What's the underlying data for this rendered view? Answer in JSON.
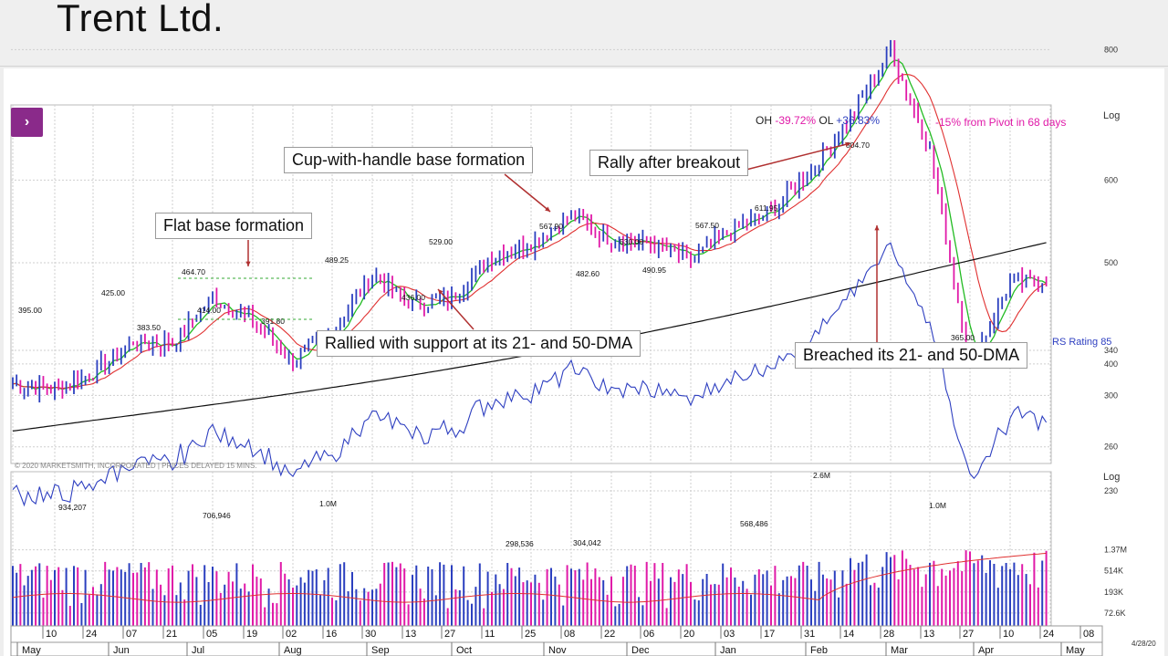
{
  "slide": {
    "title": "Trent Ltd."
  },
  "header": {
    "oh_label": "OH",
    "oh_value": "-39.72%",
    "ol_label": "OL",
    "ol_value": "+36.83%",
    "pivot_note": "-15% from Pivot in 68 days"
  },
  "nav": {
    "expand_symbol": "›"
  },
  "callouts": {
    "flat_base": "Flat base formation",
    "cup_handle": "Cup-with-handle base formation",
    "rally": "Rally after breakout",
    "support": "Rallied with support at its 21- and 50-DMA",
    "breach": "Breached its 21- and 50-DMA"
  },
  "colors": {
    "up": "#2b3fbf",
    "down": "#e01aa8",
    "dma21": "#22bb22",
    "dma50": "#e03030",
    "dma200": "#111111",
    "rs": "#2e3fc0",
    "volavg": "#e03030",
    "callout_arrow": "#b03030"
  },
  "chart_data": {
    "type": "line",
    "title": "Trent Ltd. daily price (log scale)",
    "price_axis": {
      "label": "Log",
      "ticks": [
        800,
        600,
        500,
        400,
        340,
        300,
        260,
        230
      ]
    },
    "price_points": {
      "dates": [
        "May 1",
        "May 10",
        "May 24",
        "Jun 7",
        "Jun 21",
        "Jul 5",
        "Jul 19",
        "Aug 2",
        "Aug 16",
        "Aug 30",
        "Sep 13",
        "Sep 27",
        "Oct 11",
        "Oct 25",
        "Nov 8",
        "Nov 22",
        "Dec 6",
        "Dec 20",
        "Jan 3",
        "Jan 17",
        "Jan 31",
        "Feb 14",
        "Feb 28",
        "Mar 13",
        "Mar 27",
        "Apr 10",
        "Apr 24"
      ],
      "close": [
        383,
        378,
        392,
        420,
        418,
        462,
        440,
        402,
        428,
        487,
        455,
        463,
        508,
        522,
        555,
        526,
        522,
        503,
        537,
        560,
        612,
        690,
        800,
        642,
        398,
        478,
        482
      ]
    },
    "price_labels": [
      {
        "text": "395.00",
        "value": 395
      },
      {
        "text": "425.00",
        "value": 425
      },
      {
        "text": "383.50",
        "value": 383.5
      },
      {
        "text": "464.70",
        "value": 464.7
      },
      {
        "text": "414.00",
        "value": 414
      },
      {
        "text": "391.80",
        "value": 391.8
      },
      {
        "text": "489.25",
        "value": 489.25
      },
      {
        "text": "436.00",
        "value": 436
      },
      {
        "text": "529.00",
        "value": 529
      },
      {
        "text": "567.90",
        "value": 567.9
      },
      {
        "text": "482.60",
        "value": 482.6
      },
      {
        "text": "530.00",
        "value": 530
      },
      {
        "text": "490.95",
        "value": 490.95
      },
      {
        "text": "567.50",
        "value": 567.5
      },
      {
        "text": "611.95",
        "value": 611.95
      },
      {
        "text": "804.70",
        "value": 804.7
      },
      {
        "text": "365.00",
        "value": 365
      }
    ],
    "moving_averages": [
      {
        "name": "21-DMA",
        "color": "#22bb22"
      },
      {
        "name": "50-DMA",
        "color": "#e03030"
      },
      {
        "name": "200-DMA",
        "color": "#111111"
      }
    ],
    "rs_line": {
      "label": "RS Rating 85",
      "value": 85
    },
    "volume_axis": {
      "label": "Log",
      "ticks": [
        "1.37M",
        "514K",
        "193K",
        "72.6K"
      ]
    },
    "volume_labels": [
      "934,207",
      "706,946",
      "1.0M",
      "298,536",
      "304,042",
      "568,486",
      "2.6M",
      "1.0M"
    ],
    "date_axis": {
      "day_ticks": [
        "10",
        "24",
        "07",
        "21",
        "05",
        "19",
        "02",
        "16",
        "30",
        "13",
        "27",
        "11",
        "25",
        "08",
        "22",
        "06",
        "20",
        "03",
        "17",
        "31",
        "14",
        "28",
        "13",
        "27",
        "10",
        "24",
        "08"
      ],
      "months": [
        "May",
        "Jun",
        "Jul",
        "Aug",
        "Sep",
        "Oct",
        "Nov",
        "Dec",
        "Jan",
        "Feb",
        "Mar",
        "Apr",
        "May"
      ],
      "date_stamp": "4/28/20"
    },
    "copyright": "© 2020 MARKETSMITH, INCORPORATED | PRICES DELAYED 15 MINS."
  }
}
